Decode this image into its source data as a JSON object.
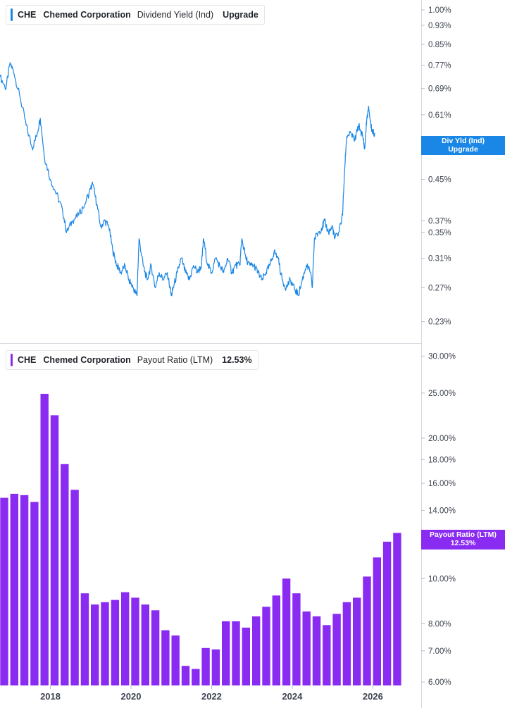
{
  "colors": {
    "yield_line": "#1a86e5",
    "payout_bar": "#8a2bf2",
    "axis_text": "#3d4450",
    "tick": "#b8bcc3"
  },
  "top_legend": {
    "ticker": "CHE",
    "company": "Chemed Corporation",
    "metric": "Dividend Yield (Ind)",
    "value": "Upgrade"
  },
  "bottom_legend": {
    "ticker": "CHE",
    "company": "Chemed Corporation",
    "metric": "Payout Ratio (LTM)",
    "value": "12.53%"
  },
  "top_tag": {
    "line1": "Div Yld (Ind)",
    "line2": "Upgrade"
  },
  "bottom_tag": {
    "line1": "Payout Ratio (LTM)",
    "line2": "12.53%"
  },
  "chart_data": [
    {
      "type": "line",
      "name": "Dividend Yield (Ind)",
      "y_scale": "log",
      "ylim": [
        0.22,
        1.02
      ],
      "xlim": [
        2016.75,
        2026.85
      ],
      "y_tick_values": [
        1.0,
        0.93,
        0.85,
        0.77,
        0.69,
        0.61,
        0.45,
        0.37,
        0.35,
        0.31,
        0.27,
        0.23
      ],
      "y_tick_labels": [
        "1.00%",
        "0.93%",
        "0.85%",
        "0.77%",
        "0.69%",
        "0.61%",
        "0.45%",
        "0.37%",
        "0.35%",
        "0.31%",
        "0.27%",
        "0.23%"
      ],
      "points": [
        [
          2016.75,
          0.73
        ],
        [
          2016.9,
          0.69
        ],
        [
          2017.0,
          0.78
        ],
        [
          2017.1,
          0.74
        ],
        [
          2017.25,
          0.66
        ],
        [
          2017.4,
          0.58
        ],
        [
          2017.55,
          0.52
        ],
        [
          2017.65,
          0.55
        ],
        [
          2017.75,
          0.6
        ],
        [
          2017.85,
          0.5
        ],
        [
          2018.0,
          0.45
        ],
        [
          2018.15,
          0.42
        ],
        [
          2018.3,
          0.39
        ],
        [
          2018.4,
          0.35
        ],
        [
          2018.55,
          0.37
        ],
        [
          2018.7,
          0.38
        ],
        [
          2018.85,
          0.4
        ],
        [
          2019.0,
          0.43
        ],
        [
          2019.05,
          0.44
        ],
        [
          2019.15,
          0.4
        ],
        [
          2019.25,
          0.36
        ],
        [
          2019.35,
          0.37
        ],
        [
          2019.45,
          0.36
        ],
        [
          2019.55,
          0.32
        ],
        [
          2019.65,
          0.3
        ],
        [
          2019.75,
          0.29
        ],
        [
          2019.85,
          0.3
        ],
        [
          2019.95,
          0.28
        ],
        [
          2020.05,
          0.27
        ],
        [
          2020.15,
          0.26
        ],
        [
          2020.2,
          0.34
        ],
        [
          2020.3,
          0.3
        ],
        [
          2020.4,
          0.28
        ],
        [
          2020.5,
          0.3
        ],
        [
          2020.6,
          0.27
        ],
        [
          2020.7,
          0.29
        ],
        [
          2020.8,
          0.28
        ],
        [
          2020.9,
          0.29
        ],
        [
          2021.0,
          0.26
        ],
        [
          2021.05,
          0.27
        ],
        [
          2021.15,
          0.29
        ],
        [
          2021.25,
          0.31
        ],
        [
          2021.35,
          0.29
        ],
        [
          2021.45,
          0.28
        ],
        [
          2021.55,
          0.3
        ],
        [
          2021.65,
          0.29
        ],
        [
          2021.75,
          0.3
        ],
        [
          2021.8,
          0.34
        ],
        [
          2021.9,
          0.3
        ],
        [
          2022.0,
          0.29
        ],
        [
          2022.1,
          0.31
        ],
        [
          2022.2,
          0.3
        ],
        [
          2022.3,
          0.29
        ],
        [
          2022.4,
          0.31
        ],
        [
          2022.5,
          0.29
        ],
        [
          2022.6,
          0.3
        ],
        [
          2022.7,
          0.3
        ],
        [
          2022.75,
          0.34
        ],
        [
          2022.85,
          0.31
        ],
        [
          2022.95,
          0.3
        ],
        [
          2023.05,
          0.3
        ],
        [
          2023.15,
          0.29
        ],
        [
          2023.25,
          0.28
        ],
        [
          2023.35,
          0.29
        ],
        [
          2023.45,
          0.3
        ],
        [
          2023.55,
          0.32
        ],
        [
          2023.65,
          0.31
        ],
        [
          2023.75,
          0.28
        ],
        [
          2023.85,
          0.27
        ],
        [
          2023.95,
          0.28
        ],
        [
          2024.05,
          0.27
        ],
        [
          2024.15,
          0.26
        ],
        [
          2024.25,
          0.28
        ],
        [
          2024.35,
          0.3
        ],
        [
          2024.45,
          0.29
        ],
        [
          2024.5,
          0.27
        ],
        [
          2024.55,
          0.34
        ],
        [
          2024.65,
          0.35
        ],
        [
          2024.75,
          0.36
        ],
        [
          2024.8,
          0.37
        ],
        [
          2024.9,
          0.35
        ],
        [
          2025.0,
          0.36
        ],
        [
          2025.05,
          0.34
        ],
        [
          2025.15,
          0.35
        ],
        [
          2025.25,
          0.38
        ],
        [
          2025.3,
          0.47
        ],
        [
          2025.35,
          0.55
        ],
        [
          2025.45,
          0.56
        ],
        [
          2025.55,
          0.54
        ],
        [
          2025.65,
          0.58
        ],
        [
          2025.75,
          0.55
        ],
        [
          2025.8,
          0.52
        ],
        [
          2025.85,
          0.6
        ],
        [
          2025.9,
          0.63
        ],
        [
          2025.95,
          0.58
        ],
        [
          2026.0,
          0.56
        ],
        [
          2026.05,
          0.56
        ]
      ]
    },
    {
      "type": "bar",
      "name": "Payout Ratio (LTM)",
      "y_scale": "log",
      "ylim": [
        5.9,
        31.0
      ],
      "xlim": [
        2016.75,
        2026.85
      ],
      "y_tick_values": [
        30,
        25,
        20,
        18,
        16,
        14,
        10,
        8,
        7,
        6
      ],
      "y_tick_labels": [
        "30.00%",
        "25.00%",
        "20.00%",
        "18.00%",
        "16.00%",
        "14.00%",
        "10.00%",
        "8.00%",
        "7.00%",
        "6.00%"
      ],
      "x_tick_values": [
        2018,
        2020,
        2022,
        2024,
        2026
      ],
      "x_tick_labels": [
        "2018",
        "2020",
        "2022",
        "2024",
        "2026"
      ],
      "points": [
        [
          2016.75,
          14.9
        ],
        [
          2017.0,
          15.2
        ],
        [
          2017.25,
          15.1
        ],
        [
          2017.5,
          14.6
        ],
        [
          2017.75,
          24.9
        ],
        [
          2018.0,
          22.4
        ],
        [
          2018.25,
          17.6
        ],
        [
          2018.5,
          15.5
        ],
        [
          2018.75,
          9.3
        ],
        [
          2019.0,
          8.8
        ],
        [
          2019.25,
          8.9
        ],
        [
          2019.5,
          9.0
        ],
        [
          2019.75,
          9.35
        ],
        [
          2020.0,
          9.1
        ],
        [
          2020.25,
          8.8
        ],
        [
          2020.5,
          8.55
        ],
        [
          2020.75,
          7.75
        ],
        [
          2021.0,
          7.55
        ],
        [
          2021.25,
          6.5
        ],
        [
          2021.5,
          6.4
        ],
        [
          2021.75,
          7.1
        ],
        [
          2022.0,
          7.05
        ],
        [
          2022.25,
          8.1
        ],
        [
          2022.5,
          8.1
        ],
        [
          2022.75,
          7.85
        ],
        [
          2023.0,
          8.3
        ],
        [
          2023.25,
          8.7
        ],
        [
          2023.5,
          9.2
        ],
        [
          2023.75,
          10.0
        ],
        [
          2024.0,
          9.3
        ],
        [
          2024.25,
          8.5
        ],
        [
          2024.5,
          8.3
        ],
        [
          2024.75,
          7.95
        ],
        [
          2025.0,
          8.4
        ],
        [
          2025.25,
          8.9
        ],
        [
          2025.5,
          9.1
        ],
        [
          2025.75,
          10.1
        ],
        [
          2026.0,
          11.1
        ],
        [
          2026.25,
          12.0
        ],
        [
          2026.5,
          12.53
        ]
      ]
    }
  ]
}
